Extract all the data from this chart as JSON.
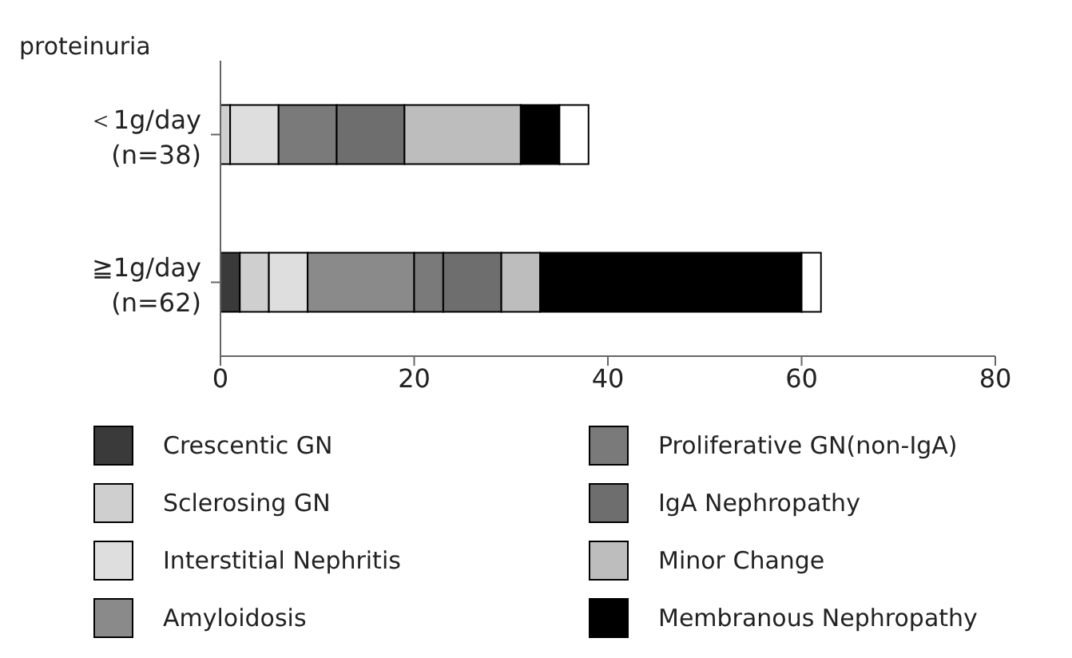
{
  "chart_data": {
    "type": "bar",
    "orientation": "horizontal",
    "stacked": true,
    "ylabel": "proteinuria",
    "categories": [
      "＜1g/day (n=38)",
      "≧1g/day (n=62)"
    ],
    "series": [
      {
        "name": "Crescentic GN",
        "color": "#3a3a3a",
        "values": [
          0,
          2
        ]
      },
      {
        "name": "Sclerosing GN",
        "color": "#cfcfcf",
        "values": [
          1,
          3
        ]
      },
      {
        "name": "Interstitial Nephritis",
        "color": "#dedede",
        "values": [
          5,
          4
        ]
      },
      {
        "name": "Amyloidosis",
        "color": "#8a8a8a",
        "values": [
          0,
          11
        ]
      },
      {
        "name": "Proliferative GN(non-IgA)",
        "color": "#7a7a7a",
        "values": [
          6,
          3
        ]
      },
      {
        "name": "IgA Nephropathy",
        "color": "#6e6e6e",
        "values": [
          7,
          6
        ]
      },
      {
        "name": "Minor Change",
        "color": "#bdbdbd",
        "values": [
          12,
          4
        ]
      },
      {
        "name": "Membranous Nephropathy",
        "color": "#000000",
        "values": [
          4,
          27
        ]
      },
      {
        "color": "#ffffff",
        "values": [
          3,
          2
        ]
      }
    ],
    "xlim": [
      0,
      80
    ],
    "xticks": [
      0,
      20,
      40,
      60,
      80
    ],
    "legend": "bottom"
  }
}
